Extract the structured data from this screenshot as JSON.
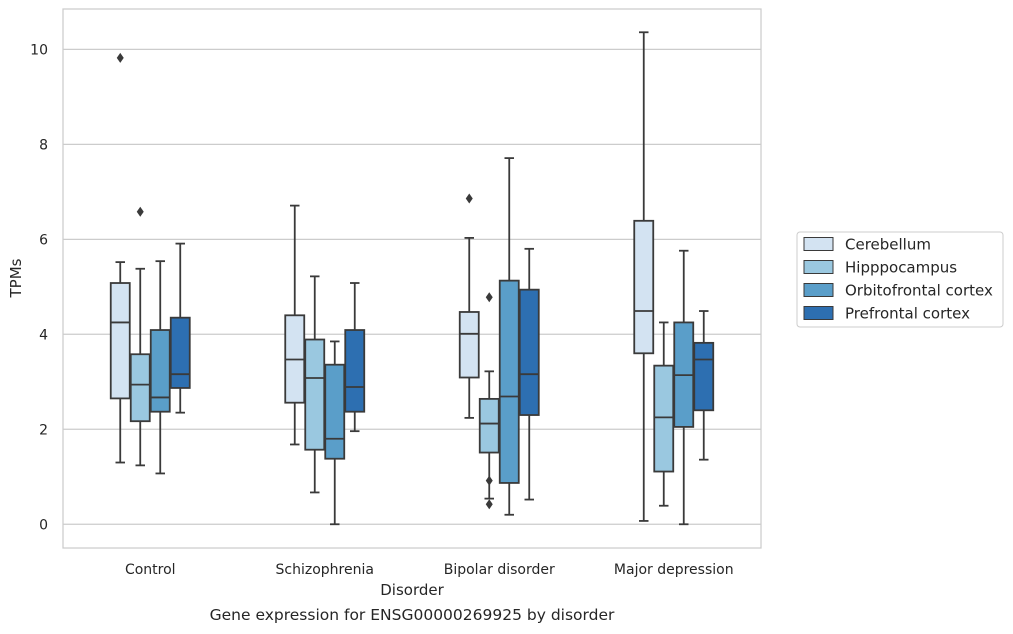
{
  "caption": "Gene expression for ENSG00000269925 by disorder",
  "chart_data": {
    "type": "boxplot",
    "title": "",
    "xlabel": "Disorder",
    "ylabel": "TPMs",
    "ylim": [
      -0.5,
      10.85
    ],
    "yticks": [
      0,
      2,
      4,
      6,
      8,
      10
    ],
    "grid": "horizontal",
    "legend_position": "center-right",
    "categories": [
      "Control",
      "Schizophrenia",
      "Bipolar disorder",
      "Major depression"
    ],
    "series": [
      {
        "name": "Cerebellum",
        "color": "#d3e3f2",
        "boxes": [
          {
            "whislo": 1.3,
            "q1": 2.65,
            "med": 4.25,
            "q3": 5.08,
            "whishi": 5.52,
            "fliers": [
              9.82
            ]
          },
          {
            "whislo": 1.68,
            "q1": 2.56,
            "med": 3.47,
            "q3": 4.4,
            "whishi": 6.71,
            "fliers": []
          },
          {
            "whislo": 2.24,
            "q1": 3.09,
            "med": 4.01,
            "q3": 4.47,
            "whishi": 6.03,
            "fliers": [
              6.86
            ]
          },
          {
            "whislo": 0.07,
            "q1": 3.6,
            "med": 4.49,
            "q3": 6.39,
            "whishi": 10.36,
            "fliers": []
          }
        ]
      },
      {
        "name": "Hipppocampus",
        "color": "#9ac8e0",
        "boxes": [
          {
            "whislo": 1.24,
            "q1": 2.17,
            "med": 2.94,
            "q3": 3.58,
            "whishi": 5.38,
            "fliers": [
              6.58
            ]
          },
          {
            "whislo": 0.67,
            "q1": 1.57,
            "med": 3.08,
            "q3": 3.89,
            "whishi": 5.22,
            "fliers": []
          },
          {
            "whislo": 0.54,
            "q1": 1.51,
            "med": 2.12,
            "q3": 2.64,
            "whishi": 3.22,
            "fliers": [
              0.92,
              0.42,
              4.78
            ]
          },
          {
            "whislo": 0.39,
            "q1": 1.11,
            "med": 2.25,
            "q3": 3.34,
            "whishi": 4.25,
            "fliers": []
          }
        ]
      },
      {
        "name": "Orbitofrontal cortex",
        "color": "#5a9ec9",
        "boxes": [
          {
            "whislo": 1.07,
            "q1": 2.37,
            "med": 2.67,
            "q3": 4.09,
            "whishi": 5.54,
            "fliers": []
          },
          {
            "whislo": 0.0,
            "q1": 1.38,
            "med": 1.8,
            "q3": 3.36,
            "whishi": 3.85,
            "fliers": []
          },
          {
            "whislo": 0.2,
            "q1": 0.87,
            "med": 2.69,
            "q3": 5.13,
            "whishi": 7.71,
            "fliers": []
          },
          {
            "whislo": 0.0,
            "q1": 2.05,
            "med": 3.14,
            "q3": 4.25,
            "whishi": 5.76,
            "fliers": []
          }
        ]
      },
      {
        "name": "Prefrontal cortex",
        "color": "#2d6fb1",
        "boxes": [
          {
            "whislo": 2.35,
            "q1": 2.87,
            "med": 3.16,
            "q3": 4.35,
            "whishi": 5.91,
            "fliers": []
          },
          {
            "whislo": 1.96,
            "q1": 2.37,
            "med": 2.89,
            "q3": 4.09,
            "whishi": 5.08,
            "fliers": []
          },
          {
            "whislo": 0.52,
            "q1": 2.3,
            "med": 3.16,
            "q3": 4.94,
            "whishi": 5.8,
            "fliers": []
          },
          {
            "whislo": 1.36,
            "q1": 2.4,
            "med": 3.47,
            "q3": 3.82,
            "whishi": 4.49,
            "fliers": []
          }
        ]
      }
    ]
  }
}
